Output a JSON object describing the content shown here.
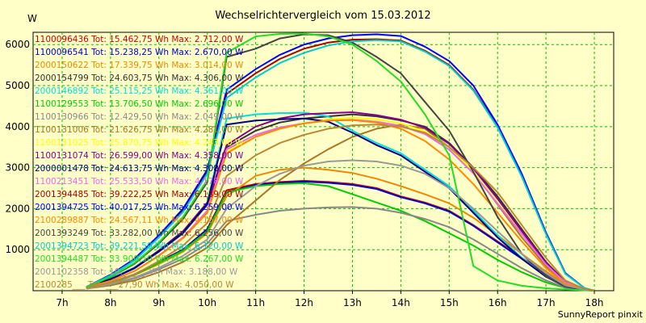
{
  "chart_data": {
    "type": "line",
    "title": "Wechselrichtervergleich vom 15.03.2012",
    "ylabel": "W",
    "footer": "SunnyReport pinxit",
    "xlim": [
      6.4,
      18.4
    ],
    "ylim": [
      0,
      6300
    ],
    "x_ticks": [
      7,
      8,
      9,
      10,
      11,
      12,
      13,
      14,
      15,
      16,
      17,
      18
    ],
    "x_tick_labels": [
      "7h",
      "8h",
      "9h",
      "10h",
      "11h",
      "12h",
      "13h",
      "14h",
      "15h",
      "16h",
      "17h",
      "18h"
    ],
    "y_ticks": [
      1000,
      2000,
      3000,
      4000,
      5000,
      6000
    ],
    "y_tick_labels": [
      "1000",
      "2000",
      "3000",
      "4000",
      "5000",
      "6000"
    ],
    "grid": true,
    "legend_position": "top-left",
    "series": [
      {
        "name": "1100096436 Tot: 15.462,75 Wh Max: 2.712,00 W",
        "color": "#cc0000",
        "x": [
          7.5,
          8,
          8.5,
          9,
          9.5,
          10,
          10.4,
          11,
          11.5,
          12,
          12.5,
          13,
          13.5,
          14,
          14.5,
          15,
          15.5,
          16,
          16.5,
          17,
          17.4,
          17.8,
          18
        ],
        "y": [
          60,
          200,
          400,
          700,
          1000,
          1500,
          2450,
          2600,
          2650,
          2680,
          2650,
          2600,
          2500,
          2300,
          2150,
          1950,
          1600,
          1200,
          800,
          420,
          150,
          30,
          0
        ]
      },
      {
        "name": "1100096541 Tot: 15.238,25 Wh Max: 2.670,00 W",
        "color": "#0000cc",
        "x": [
          7.5,
          8,
          8.5,
          9,
          9.5,
          10,
          10.4,
          11,
          11.5,
          12,
          12.5,
          13,
          13.5,
          14,
          14.5,
          15,
          15.5,
          16,
          16.5,
          17,
          17.4,
          17.8,
          18
        ],
        "y": [
          60,
          200,
          400,
          700,
          1000,
          1500,
          2400,
          2580,
          2630,
          2660,
          2630,
          2580,
          2480,
          2280,
          2130,
          1930,
          1580,
          1180,
          780,
          400,
          140,
          30,
          0
        ]
      },
      {
        "name": "2000150622 Tot: 17.339,75 Wh Max: 3.014,00 W",
        "color": "#ee8800",
        "x": [
          7.5,
          8,
          8.5,
          9,
          9.5,
          10,
          10.4,
          11,
          11.5,
          12,
          12.5,
          13,
          13.5,
          14,
          14.5,
          15,
          15.5,
          16,
          16.5,
          17,
          17.4,
          17.8,
          18
        ],
        "y": [
          60,
          180,
          380,
          650,
          950,
          1400,
          2300,
          2800,
          2950,
          3000,
          2950,
          2870,
          2730,
          2550,
          2350,
          2130,
          1780,
          1350,
          900,
          470,
          160,
          30,
          0
        ]
      },
      {
        "name": "2000154799 Tot: 24.603,75 Wh Max: 4.306,00 W",
        "color": "#333333",
        "x": [
          7.5,
          8,
          8.5,
          9,
          9.5,
          10,
          10.4,
          11,
          11.5,
          12,
          12.5,
          13,
          13.5,
          14,
          14.5,
          15,
          15.5,
          16,
          16.5,
          17,
          17.4,
          17.8,
          18
        ],
        "y": [
          80,
          280,
          550,
          950,
          1400,
          2100,
          3500,
          3900,
          4100,
          4200,
          4250,
          4300,
          4250,
          4150,
          4000,
          3600,
          3000,
          2300,
          1500,
          700,
          220,
          40,
          0
        ]
      },
      {
        "name": "2000146892 Tot: 25.115,25 Wh Max: 4.361,00 W",
        "color": "#00dddd",
        "x": [
          7.5,
          8,
          8.5,
          9,
          9.5,
          10,
          10.4,
          11,
          11.5,
          12,
          12.5,
          13,
          13.5,
          14,
          14.5,
          15,
          15.5,
          16,
          16.5,
          17,
          17.4,
          17.8,
          18
        ],
        "y": [
          80,
          290,
          570,
          980,
          1450,
          2150,
          4200,
          4300,
          4330,
          4340,
          4250,
          3900,
          3600,
          3350,
          2950,
          2550,
          1950,
          1350,
          800,
          350,
          100,
          20,
          0
        ]
      },
      {
        "name": "1100129553 Tot: 13.706,50 Wh Max: 2.696,00 W",
        "color": "#00cc00",
        "x": [
          7.5,
          8,
          8.5,
          9,
          9.5,
          10,
          10.4,
          11,
          11.5,
          12,
          12.5,
          13,
          13.5,
          14,
          14.5,
          15,
          15.5,
          16,
          16.5,
          17,
          17.4,
          17.8,
          18
        ],
        "y": [
          60,
          190,
          390,
          680,
          980,
          1450,
          2400,
          2550,
          2600,
          2620,
          2550,
          2350,
          2150,
          1950,
          1700,
          1400,
          1100,
          750,
          450,
          200,
          70,
          15,
          0
        ]
      },
      {
        "name": "1100130966 Tot: 12.429,50 Wh Max: 2.049,00 W",
        "color": "#888888",
        "x": [
          7.5,
          8,
          8.5,
          9,
          9.5,
          10,
          10.4,
          11,
          11.5,
          12,
          12.5,
          13,
          13.5,
          14,
          14.5,
          15,
          15.5,
          16,
          16.5,
          17,
          17.4,
          17.8,
          18
        ],
        "y": [
          50,
          150,
          300,
          520,
          780,
          1150,
          1700,
          1850,
          1950,
          2000,
          2030,
          2040,
          2000,
          1900,
          1750,
          1550,
          1250,
          900,
          550,
          250,
          80,
          15,
          0
        ]
      },
      {
        "name": "1100131006 Tot: 21.626,75 Wh Max: 4.281,00 W",
        "color": "#aa7722",
        "x": [
          7.5,
          8,
          8.5,
          9,
          9.5,
          10,
          10.4,
          11,
          11.5,
          12,
          12.5,
          13,
          13.5,
          14,
          14.5,
          15,
          15.5,
          16,
          16.5,
          17,
          17.4,
          17.8,
          18
        ],
        "y": [
          50,
          130,
          250,
          450,
          700,
          1050,
          1600,
          2200,
          2700,
          3100,
          3450,
          3750,
          3950,
          4050,
          3950,
          3500,
          2900,
          2100,
          1300,
          600,
          180,
          30,
          0
        ]
      },
      {
        "name": "1100131025 Tot: 25.870,75 Wh Max: 4.243,00 W",
        "color": "#ffff00",
        "x": [
          7.5,
          8,
          8.5,
          9,
          9.5,
          10,
          10.4,
          11,
          11.5,
          12,
          12.5,
          13,
          13.5,
          14,
          14.5,
          15,
          15.5,
          16,
          16.5,
          17,
          17.4,
          17.8,
          18
        ],
        "y": [
          70,
          240,
          480,
          850,
          1300,
          1950,
          3400,
          3750,
          3950,
          4080,
          4180,
          4220,
          4180,
          4080,
          3880,
          3500,
          2900,
          2150,
          1400,
          650,
          200,
          35,
          0
        ]
      },
      {
        "name": "1100131074 Tot: 26.599,00 Wh Max: 4.358,00 W",
        "color": "#880088",
        "x": [
          7.5,
          8,
          8.5,
          9,
          9.5,
          10,
          10.4,
          11,
          11.5,
          12,
          12.5,
          13,
          13.5,
          14,
          14.5,
          15,
          15.5,
          16,
          16.5,
          17,
          17.4,
          17.8,
          18
        ],
        "y": [
          80,
          280,
          560,
          980,
          1450,
          2150,
          3550,
          4000,
          4200,
          4300,
          4330,
          4350,
          4280,
          4170,
          3970,
          3580,
          2980,
          2240,
          1450,
          680,
          210,
          35,
          0
        ]
      },
      {
        "name": "2000001478 Tot: 24.613,75 Wh Max: 4.308,00 W",
        "color": "#000080",
        "x": [
          7.5,
          8,
          8.5,
          9,
          9.5,
          10,
          10.4,
          11,
          11.5,
          12,
          12.5,
          13,
          13.5,
          14,
          14.5,
          15,
          15.5,
          16,
          16.5,
          17,
          17.4,
          17.8,
          18
        ],
        "y": [
          80,
          280,
          550,
          960,
          1420,
          2120,
          4050,
          4150,
          4180,
          4200,
          4120,
          3850,
          3550,
          3300,
          2900,
          2500,
          1900,
          1300,
          780,
          340,
          100,
          20,
          0
        ]
      },
      {
        "name": "1100213451 Tot: 25.533,50 Wh Max: 4.178,00 W",
        "color": "#ee66ee",
        "x": [
          7.5,
          8,
          8.5,
          9,
          9.5,
          10,
          10.4,
          11,
          11.5,
          12,
          12.5,
          13,
          13.5,
          14,
          14.5,
          15,
          15.5,
          16,
          16.5,
          17,
          17.4,
          17.8,
          18
        ],
        "y": [
          70,
          240,
          480,
          860,
          1300,
          1950,
          3450,
          3800,
          3980,
          4080,
          4150,
          4170,
          4120,
          4020,
          3820,
          3440,
          2860,
          2120,
          1380,
          640,
          200,
          35,
          0
        ]
      },
      {
        "name": "2001394485 Tot: 39.222,25 Wh Max: 6.139,00 W",
        "color": "#aa0000",
        "x": [
          7.5,
          8,
          8.5,
          9,
          9.5,
          10,
          10.4,
          11,
          11.5,
          12,
          12.5,
          13,
          13.5,
          14,
          14.5,
          15,
          15.5,
          16,
          16.5,
          17,
          17.4,
          17.8,
          18
        ],
        "y": [
          90,
          380,
          760,
          1320,
          1950,
          2900,
          4800,
          5300,
          5650,
          5900,
          6050,
          6120,
          6130,
          6100,
          5850,
          5500,
          4900,
          4000,
          2800,
          1400,
          420,
          60,
          0
        ]
      },
      {
        "name": "2001394725 Tot: 40.017,25 Wh Max: 6.259,00 W",
        "color": "#0000ff",
        "x": [
          7.5,
          8,
          8.5,
          9,
          9.5,
          10,
          10.4,
          11,
          11.5,
          12,
          12.5,
          13,
          13.5,
          14,
          14.5,
          15,
          15.5,
          16,
          16.5,
          17,
          17.4,
          17.8,
          18
        ],
        "y": [
          90,
          390,
          780,
          1350,
          2000,
          2950,
          4900,
          5400,
          5750,
          6000,
          6150,
          6230,
          6250,
          6210,
          5950,
          5600,
          5000,
          4050,
          2850,
          1420,
          430,
          60,
          0
        ]
      },
      {
        "name": "2100289887 Tot: 24.567,11 Wh Max: 4.167,00 W",
        "color": "#ff8800",
        "x": [
          7.5,
          8,
          8.5,
          9,
          9.5,
          10,
          10.4,
          11,
          11.5,
          12,
          12.5,
          13,
          13.5,
          14,
          14.5,
          15,
          15.5,
          16,
          16.5,
          17,
          17.4,
          17.8,
          18
        ],
        "y": [
          70,
          240,
          480,
          850,
          1280,
          1900,
          3350,
          3750,
          3950,
          4080,
          4150,
          4160,
          4100,
          3950,
          3650,
          3200,
          2600,
          1900,
          1200,
          550,
          170,
          30,
          0
        ]
      },
      {
        "name": "2001393249 Tot: 33.282,00 Wh Max: 6.256,00 W",
        "color": "#444444",
        "x": [
          7.5,
          8,
          8.5,
          9,
          9.5,
          10,
          10.4,
          11,
          11.5,
          12,
          12.5,
          13,
          13.5,
          14,
          14.5,
          15,
          15.5,
          16,
          16.5,
          17,
          17.4,
          17.8,
          18
        ],
        "y": [
          80,
          330,
          660,
          1150,
          1750,
          2650,
          5700,
          5900,
          6150,
          6250,
          6230,
          6050,
          5700,
          5300,
          4600,
          3900,
          2900,
          1800,
          900,
          350,
          100,
          20,
          0
        ]
      },
      {
        "name": "2001394723 Tot: 39.221,50 Wh Max: 6.120,00 W",
        "color": "#00cccc",
        "x": [
          7.5,
          8,
          8.5,
          9,
          9.5,
          10,
          10.4,
          11,
          11.5,
          12,
          12.5,
          13,
          13.5,
          14,
          14.5,
          15,
          15.5,
          16,
          16.5,
          17,
          17.4,
          17.8,
          18
        ],
        "y": [
          90,
          370,
          740,
          1300,
          1920,
          2850,
          4700,
          5200,
          5550,
          5800,
          5980,
          6080,
          6110,
          6080,
          5830,
          5480,
          4880,
          3980,
          2780,
          1380,
          410,
          60,
          0
        ]
      },
      {
        "name": "2001394487 Tot: 33.900,50 Wh Max: 6.267,00 W",
        "color": "#22dd22",
        "x": [
          7.5,
          8,
          8.5,
          9,
          9.5,
          10,
          10.4,
          11,
          11.5,
          12,
          12.5,
          13,
          13.5,
          14,
          14.5,
          15,
          15.5,
          16,
          16.5,
          17,
          17.4,
          17.8,
          18
        ],
        "y": [
          80,
          340,
          680,
          1180,
          1800,
          2700,
          5800,
          6200,
          6260,
          6270,
          6200,
          6000,
          5600,
          5100,
          4300,
          3300,
          600,
          250,
          120,
          60,
          30,
          10,
          0
        ]
      },
      {
        "name": "2001102358 Tot: 19.___,__ Wh Max: 3.188,00 W",
        "color": "#999999",
        "x": [
          7.5,
          8,
          8.5,
          9,
          9.5,
          10,
          10.4,
          11,
          11.5,
          12,
          12.5,
          13,
          13.5,
          14,
          14.5,
          15,
          15.5,
          16,
          16.5,
          17,
          17.4,
          17.8,
          18
        ],
        "y": [
          50,
          160,
          320,
          560,
          850,
          1250,
          2000,
          2550,
          2850,
          3050,
          3150,
          3180,
          3150,
          3050,
          2850,
          2500,
          2000,
          1450,
          900,
          420,
          130,
          25,
          0
        ]
      },
      {
        "name": "2100285___ Tot: ___27,90 Wh Max: 4.050,00 W",
        "color": "#bb8833",
        "x": [
          7.5,
          8,
          8.5,
          9,
          9.5,
          10,
          10.4,
          11,
          11.5,
          12,
          12.5,
          13,
          13.5,
          14,
          14.5,
          15,
          15.5,
          16,
          16.5,
          17,
          17.4,
          17.8,
          18
        ],
        "y": [
          60,
          200,
          400,
          720,
          1100,
          1650,
          2800,
          3300,
          3600,
          3800,
          3950,
          4030,
          4050,
          4000,
          3850,
          3500,
          3000,
          2400,
          1600,
          800,
          250,
          40,
          0
        ]
      }
    ]
  }
}
